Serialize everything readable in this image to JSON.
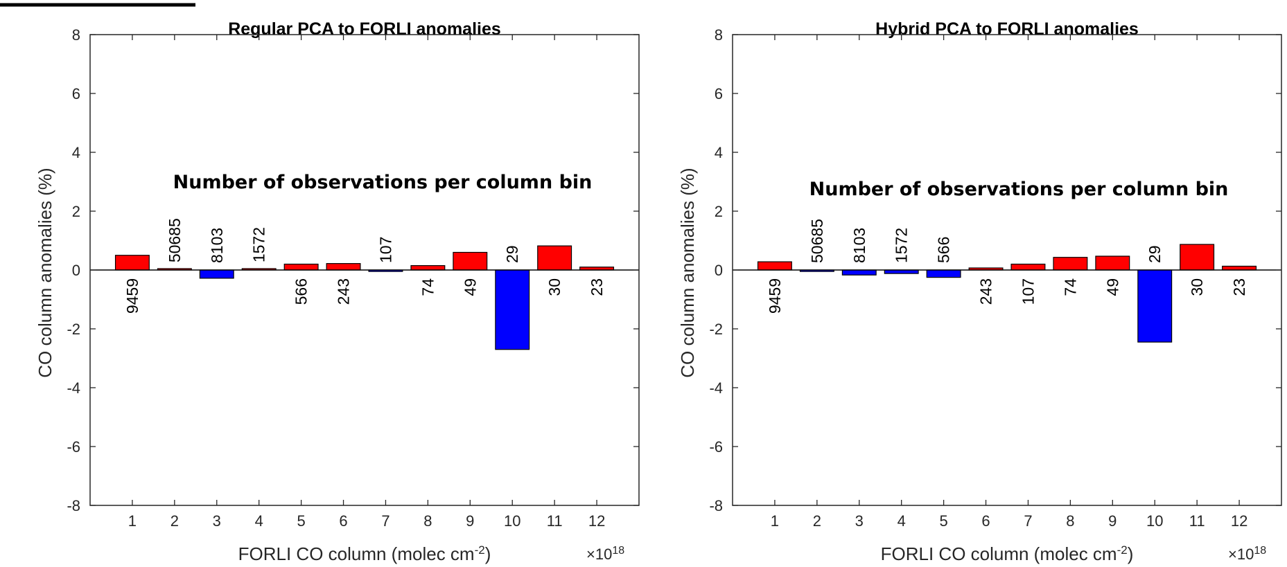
{
  "colors": {
    "positive": "#ff0000",
    "negative": "#0000ff",
    "axis": "#262626",
    "background": "#ffffff"
  },
  "chart_data": [
    {
      "type": "bar",
      "title": "Regular PCA to FORLI anomalies",
      "xlabel": "FORLI CO column (molec cm",
      "xlabel_sup": "-2",
      "xlabel_close": ")",
      "x_multiplier": "×10",
      "x_multiplier_exp": "18",
      "ylabel": "CO column anomalies (%)",
      "annotation": "Number of observations per column bin",
      "ylim": [
        -8,
        8
      ],
      "yticks": [
        -8,
        -6,
        -4,
        -2,
        0,
        2,
        4,
        6,
        8
      ],
      "categories": [
        "1",
        "2",
        "3",
        "4",
        "5",
        "6",
        "7",
        "8",
        "9",
        "10",
        "11",
        "12"
      ],
      "values": [
        0.5,
        0.02,
        -0.28,
        0.02,
        0.2,
        0.22,
        -0.05,
        0.15,
        0.6,
        -2.7,
        0.82,
        0.1
      ],
      "counts": [
        "9459",
        "50685",
        "8103",
        "1572",
        "566",
        "243",
        "107",
        "74",
        "49",
        "29",
        "30",
        "23"
      ],
      "count_positions": [
        "below",
        "above",
        "above",
        "above",
        "below",
        "below",
        "above",
        "below",
        "below",
        "above",
        "below",
        "below"
      ]
    },
    {
      "type": "bar",
      "title": "Hybrid PCA to FORLI anomalies",
      "xlabel": "FORLI CO column (molec cm",
      "xlabel_sup": "-2",
      "xlabel_close": ")",
      "x_multiplier": "×10",
      "x_multiplier_exp": "18",
      "ylabel": "CO column anomalies (%)",
      "annotation": "Number of observations per column bin",
      "ylim": [
        -8,
        8
      ],
      "yticks": [
        -8,
        -6,
        -4,
        -2,
        0,
        2,
        4,
        6,
        8
      ],
      "categories": [
        "1",
        "2",
        "3",
        "4",
        "5",
        "6",
        "7",
        "8",
        "9",
        "10",
        "11",
        "12"
      ],
      "values": [
        0.28,
        -0.05,
        -0.17,
        -0.12,
        -0.25,
        0.07,
        0.2,
        0.43,
        0.47,
        -2.45,
        0.87,
        0.13
      ],
      "counts": [
        "9459",
        "50685",
        "8103",
        "1572",
        "566",
        "243",
        "107",
        "74",
        "49",
        "29",
        "30",
        "23"
      ],
      "count_positions": [
        "below",
        "above",
        "above",
        "above",
        "above",
        "below",
        "below",
        "below",
        "below",
        "above",
        "below",
        "below"
      ]
    }
  ]
}
